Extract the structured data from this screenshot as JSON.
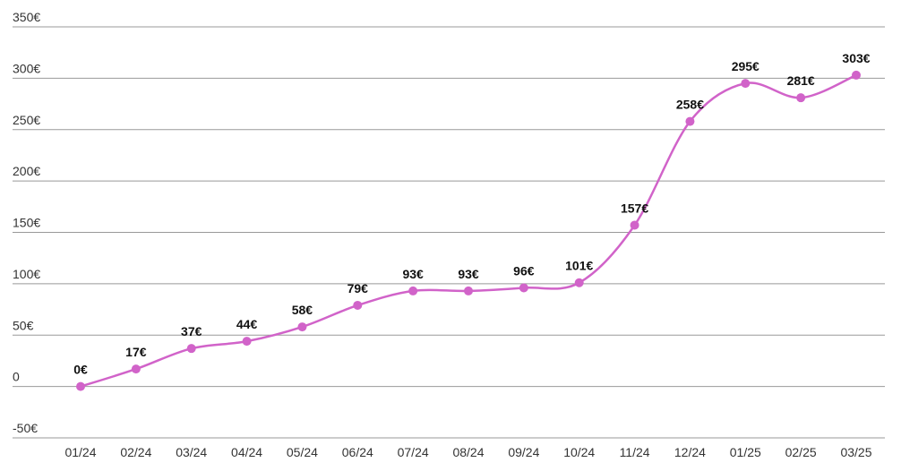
{
  "chart_data": {
    "type": "line",
    "categories": [
      "01/24",
      "02/24",
      "03/24",
      "04/24",
      "05/24",
      "06/24",
      "07/24",
      "08/24",
      "09/24",
      "10/24",
      "11/24",
      "12/24",
      "01/25",
      "02/25",
      "03/25"
    ],
    "values": [
      0,
      17,
      37,
      44,
      58,
      79,
      93,
      93,
      96,
      101,
      157,
      258,
      295,
      281,
      303
    ],
    "value_labels": [
      "0€",
      "17€",
      "37€",
      "44€",
      "58€",
      "79€",
      "93€",
      "93€",
      "96€",
      "101€",
      "157€",
      "258€",
      "295€",
      "281€",
      "303€"
    ],
    "color": "#d163c9",
    "ylim": [
      -50,
      350
    ],
    "yticks": [
      {
        "value": -50,
        "label": "-50€"
      },
      0,
      {
        "value": 50,
        "label": "50€"
      },
      {
        "value": 100,
        "label": "100€"
      },
      {
        "value": 150,
        "label": "150€"
      },
      {
        "value": 200,
        "label": "200€"
      },
      {
        "value": 250,
        "label": "250€"
      },
      {
        "value": 300,
        "label": "300€"
      },
      {
        "value": 350,
        "label": "350€"
      }
    ],
    "grid": true
  }
}
